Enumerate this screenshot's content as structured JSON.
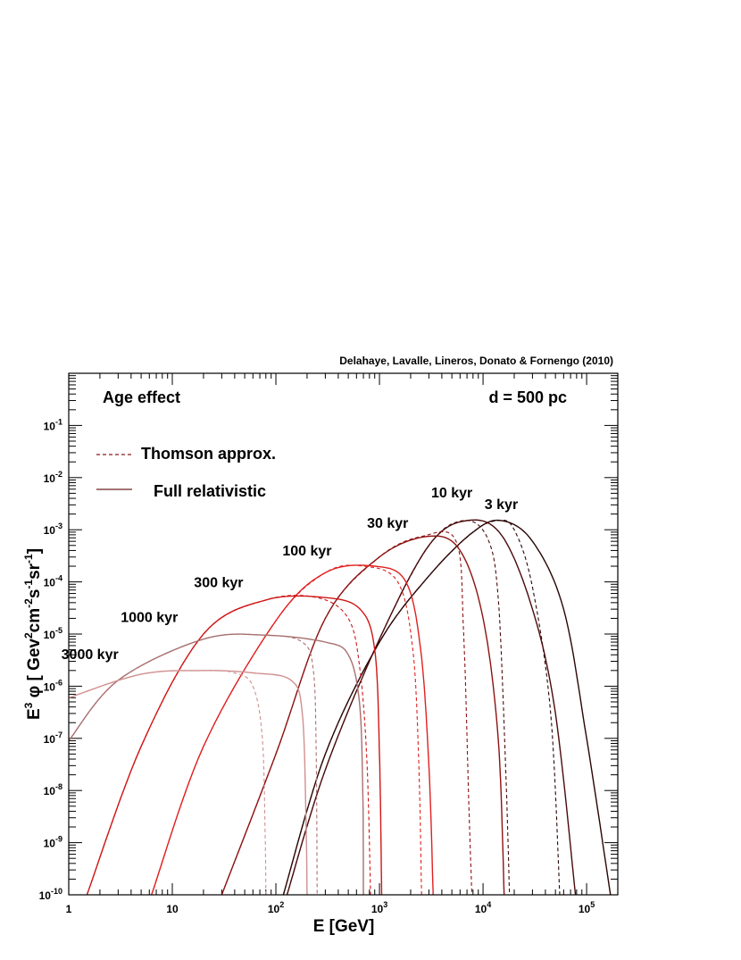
{
  "credit": "Delahaye, Lavalle, Lineros, Donato & Fornengo (2010)",
  "chart_data": {
    "type": "line",
    "title": "",
    "xlabel": "E [GeV]",
    "ylabel_parts": [
      "E",
      "3",
      " φ [ Gev",
      "2",
      "cm",
      "-2",
      "s",
      "-1",
      "sr",
      "-1",
      "]"
    ],
    "x_scale": "log",
    "y_scale": "log",
    "xlim": [
      1,
      200000
    ],
    "ylim": [
      1e-10,
      1
    ],
    "x_ticks": [
      {
        "value": 1,
        "base": "1",
        "exp": ""
      },
      {
        "value": 10,
        "base": "10",
        "exp": ""
      },
      {
        "value": 100,
        "base": "10",
        "exp": "2"
      },
      {
        "value": 1000,
        "base": "10",
        "exp": "3"
      },
      {
        "value": 10000,
        "base": "10",
        "exp": "4"
      },
      {
        "value": 100000,
        "base": "10",
        "exp": "5"
      }
    ],
    "y_ticks": [
      {
        "value": 1e-10,
        "base": "10",
        "exp": "-10"
      },
      {
        "value": 1e-09,
        "base": "10",
        "exp": "-9"
      },
      {
        "value": 1e-08,
        "base": "10",
        "exp": "-8"
      },
      {
        "value": 1e-07,
        "base": "10",
        "exp": "-7"
      },
      {
        "value": 1e-06,
        "base": "10",
        "exp": "-6"
      },
      {
        "value": 1e-05,
        "base": "10",
        "exp": "-5"
      },
      {
        "value": 0.0001,
        "base": "10",
        "exp": "-4"
      },
      {
        "value": 0.001,
        "base": "10",
        "exp": "-3"
      },
      {
        "value": 0.01,
        "base": "10",
        "exp": "-2"
      },
      {
        "value": 0.1,
        "base": "10",
        "exp": "-1"
      }
    ],
    "annotations": {
      "left": "Age effect",
      "right": "d = 500 pc"
    },
    "legend": [
      {
        "label": "Thomson approx.",
        "style": "dashed",
        "color": "#8b1a1a"
      },
      {
        "label": "Full relativistic",
        "style": "solid",
        "color": "#6b2020"
      }
    ],
    "series": [
      {
        "age_label": "3 kyr",
        "color": "#2a0505",
        "full": [
          [
            118,
            1e-10
          ],
          [
            300,
            5e-08
          ],
          [
            1000,
            7e-06
          ],
          [
            3000,
            0.00013
          ],
          [
            8000,
            0.0009
          ],
          [
            15000,
            0.0015
          ],
          [
            30000,
            0.0006
          ],
          [
            60000,
            3e-05
          ],
          [
            100000,
            1e-07
          ],
          [
            170000,
            1e-10
          ]
        ],
        "thomson": [
          [
            118,
            1e-10
          ],
          [
            300,
            5e-08
          ],
          [
            1000,
            7e-06
          ],
          [
            3000,
            0.00013
          ],
          [
            8000,
            0.0009
          ],
          [
            14000,
            0.0015
          ],
          [
            20000,
            0.001
          ],
          [
            30000,
            8e-05
          ],
          [
            45000,
            3e-07
          ],
          [
            55000,
            1e-10
          ]
        ]
      },
      {
        "age_label": "10 kyr",
        "color": "#4a0a0a",
        "full": [
          [
            128,
            1e-10
          ],
          [
            300,
            2.5e-08
          ],
          [
            1000,
            8e-06
          ],
          [
            3000,
            0.0005
          ],
          [
            7000,
            0.0015
          ],
          [
            15000,
            0.0008
          ],
          [
            30000,
            3e-05
          ],
          [
            50000,
            3e-07
          ],
          [
            78000,
            1e-10
          ]
        ],
        "thomson": [
          [
            128,
            1e-10
          ],
          [
            300,
            2.5e-08
          ],
          [
            1000,
            8e-06
          ],
          [
            3000,
            0.0005
          ],
          [
            6500,
            0.0015
          ],
          [
            11000,
            0.0007
          ],
          [
            14000,
            5e-05
          ],
          [
            16500,
            3e-08
          ],
          [
            18000,
            1e-10
          ]
        ]
      },
      {
        "age_label": "30 kyr",
        "color": "#8e1212",
        "full": [
          [
            30,
            1e-10
          ],
          [
            100,
            5e-08
          ],
          [
            300,
            2e-05
          ],
          [
            1000,
            0.0003
          ],
          [
            3000,
            0.00075
          ],
          [
            6000,
            0.0004
          ],
          [
            10000,
            2e-05
          ],
          [
            14000,
            1e-07
          ],
          [
            16000,
            1e-10
          ]
        ],
        "thomson": [
          [
            30,
            1e-10
          ],
          [
            100,
            5e-08
          ],
          [
            300,
            2e-05
          ],
          [
            1000,
            0.0003
          ],
          [
            2600,
            0.00075
          ],
          [
            5500,
            0.0006
          ],
          [
            6500,
            1e-05
          ],
          [
            7300,
            5e-09
          ],
          [
            7800,
            1e-10
          ]
        ]
      },
      {
        "age_label": "100 kyr",
        "color": "#e02020",
        "full": [
          [
            6.3,
            1e-10
          ],
          [
            20,
            7e-08
          ],
          [
            100,
            1.8e-05
          ],
          [
            300,
            0.00015
          ],
          [
            900,
            0.0002
          ],
          [
            1800,
            0.0001
          ],
          [
            2500,
            5e-06
          ],
          [
            3000,
            3e-08
          ],
          [
            3300,
            1e-10
          ]
        ],
        "thomson": [
          [
            6.3,
            1e-10
          ],
          [
            20,
            7e-08
          ],
          [
            100,
            1.8e-05
          ],
          [
            300,
            0.00015
          ],
          [
            700,
            0.0002
          ],
          [
            1500,
            0.0001
          ],
          [
            2100,
            5e-06
          ],
          [
            2400,
            3e-08
          ],
          [
            2550,
            1e-10
          ]
        ]
      },
      {
        "age_label": "300 kyr",
        "color": "#d01515",
        "full": [
          [
            1.5,
            1e-10
          ],
          [
            5,
            7e-08
          ],
          [
            20,
            1e-05
          ],
          [
            80,
            4.5e-05
          ],
          [
            300,
            5e-05
          ],
          [
            650,
            3e-05
          ],
          [
            900,
            5e-06
          ],
          [
            1000,
            5e-08
          ],
          [
            1050,
            1e-10
          ]
        ],
        "thomson": [
          [
            1.5,
            1e-10
          ],
          [
            5,
            7e-08
          ],
          [
            20,
            1e-05
          ],
          [
            80,
            4.5e-05
          ],
          [
            250,
            5e-05
          ],
          [
            500,
            2e-05
          ],
          [
            650,
            2e-06
          ],
          [
            760,
            3e-08
          ],
          [
            820,
            1e-10
          ]
        ]
      },
      {
        "age_label": "1000 kyr",
        "color": "#a87070",
        "full": [
          [
            1,
            9e-08
          ],
          [
            3,
            1.3e-06
          ],
          [
            20,
            8e-06
          ],
          [
            80,
            9.5e-06
          ],
          [
            300,
            7e-06
          ],
          [
            500,
            4e-06
          ],
          [
            640,
            5e-07
          ],
          [
            690,
            1e-08
          ],
          [
            700,
            1e-10
          ]
        ],
        "thomson": [
          [
            1,
            9e-08
          ],
          [
            3,
            1.3e-06
          ],
          [
            20,
            8e-06
          ],
          [
            80,
            9.5e-06
          ],
          [
            180,
            7e-06
          ],
          [
            230,
            2e-06
          ],
          [
            245,
            5e-08
          ],
          [
            250,
            1e-10
          ]
        ]
      },
      {
        "age_label": "3000 kyr",
        "color": "#d09090",
        "full": [
          [
            1,
            6e-07
          ],
          [
            5,
            1.7e-06
          ],
          [
            20,
            2e-06
          ],
          [
            60,
            1.8e-06
          ],
          [
            140,
            1.3e-06
          ],
          [
            180,
            3e-07
          ],
          [
            195,
            3e-09
          ],
          [
            200,
            1e-10
          ]
        ],
        "thomson": [
          [
            1,
            6e-07
          ],
          [
            5,
            1.7e-06
          ],
          [
            20,
            2e-06
          ],
          [
            40,
            1.8e-06
          ],
          [
            60,
            1e-06
          ],
          [
            74,
            1e-07
          ],
          [
            79,
            1e-09
          ],
          [
            80,
            1e-10
          ]
        ]
      }
    ],
    "age_label_positions_data": [
      {
        "label": "3 kyr",
        "x": 15000,
        "y": 0.0025
      },
      {
        "label": "10 kyr",
        "x": 5000,
        "y": 0.0042
      },
      {
        "label": "30 kyr",
        "x": 1200,
        "y": 0.0011
      },
      {
        "label": "100 kyr",
        "x": 200,
        "y": 0.00032
      },
      {
        "label": "300 kyr",
        "x": 28,
        "y": 8e-05
      },
      {
        "label": "1000 kyr",
        "x": 6,
        "y": 1.7e-05
      },
      {
        "label": "3000 kyr",
        "x": 1.6,
        "y": 3.3e-06
      }
    ]
  }
}
